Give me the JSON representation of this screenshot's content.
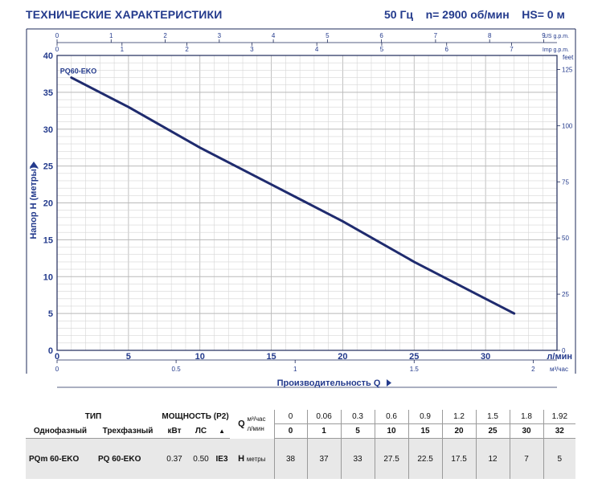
{
  "header": {
    "title": "ТЕХНИЧЕСКИЕ ХАРАКТЕРИСТИКИ",
    "conditions": "50 Гц    n= 2900 об/мин    HS= 0 м"
  },
  "chart_data": {
    "type": "line",
    "series": [
      {
        "name": "PQ60-EKO",
        "x": [
          1,
          5,
          10,
          15,
          20,
          25,
          30,
          32
        ],
        "y": [
          37,
          33,
          27.5,
          22.5,
          17.5,
          12,
          7,
          5
        ]
      }
    ],
    "xlabel": "Производительность  Q",
    "ylabel": "Напор  H (метры)",
    "xlim": [
      0,
      35
    ],
    "ylim": [
      0,
      40
    ],
    "grid": true,
    "axes": {
      "lpm": {
        "unit": "л/мин",
        "ticks": [
          "0",
          "5",
          "10",
          "15",
          "20",
          "25",
          "30"
        ],
        "values": [
          0,
          5,
          10,
          15,
          20,
          25,
          30
        ]
      },
      "m3h": {
        "unit": "м³/час",
        "ticks": [
          "0",
          "0.5",
          "1",
          "1.5",
          "2"
        ],
        "values": [
          0,
          0.5,
          1,
          1.5,
          2
        ]
      },
      "usgpm": {
        "unit": "US g.p.m.",
        "ticks": [
          "0",
          "1",
          "2",
          "3",
          "4",
          "5",
          "6",
          "7",
          "8",
          "9"
        ],
        "values": [
          0,
          1,
          2,
          3,
          4,
          5,
          6,
          7,
          8,
          9
        ]
      },
      "impgpm": {
        "unit": "Imp g.p.m.",
        "ticks": [
          "0",
          "1",
          "2",
          "3",
          "4",
          "5",
          "6",
          "7"
        ],
        "values": [
          0,
          1,
          2,
          3,
          4,
          5,
          6,
          7
        ]
      },
      "meters": {
        "ticks": [
          "0",
          "5",
          "10",
          "15",
          "20",
          "25",
          "30",
          "35",
          "40"
        ],
        "values": [
          0,
          5,
          10,
          15,
          20,
          25,
          30,
          35,
          40
        ]
      },
      "feet": {
        "unit": "feet",
        "ticks": [
          "0",
          "25",
          "50",
          "75",
          "100",
          "125"
        ],
        "values": [
          0,
          25,
          50,
          75,
          100,
          125
        ]
      }
    }
  },
  "table": {
    "header": {
      "type": "ТИП",
      "power": "МОЩНОСТЬ (P2)",
      "q_label": "Q",
      "unit_m3h": "м³/час",
      "unit_lpm": "л/мин",
      "single_phase": "Однофазный",
      "three_phase": "Трехфазный",
      "kw": "кВт",
      "hp": "ЛС",
      "triangle": "▲",
      "ie": "IE3",
      "h_label": "H",
      "h_unit": "метры"
    },
    "q_m3h": [
      "0",
      "0.06",
      "0.3",
      "0.6",
      "0.9",
      "1.2",
      "1.5",
      "1.8",
      "1.92"
    ],
    "q_lpm": [
      "0",
      "1",
      "5",
      "10",
      "15",
      "20",
      "25",
      "30",
      "32"
    ],
    "row": {
      "model_single": "PQm 60-EKO",
      "model_three": "PQ 60-EKO",
      "kw": "0.37",
      "hp": "0.50",
      "h": [
        "38",
        "37",
        "33",
        "27.5",
        "22.5",
        "17.5",
        "12",
        "7",
        "5"
      ]
    }
  }
}
